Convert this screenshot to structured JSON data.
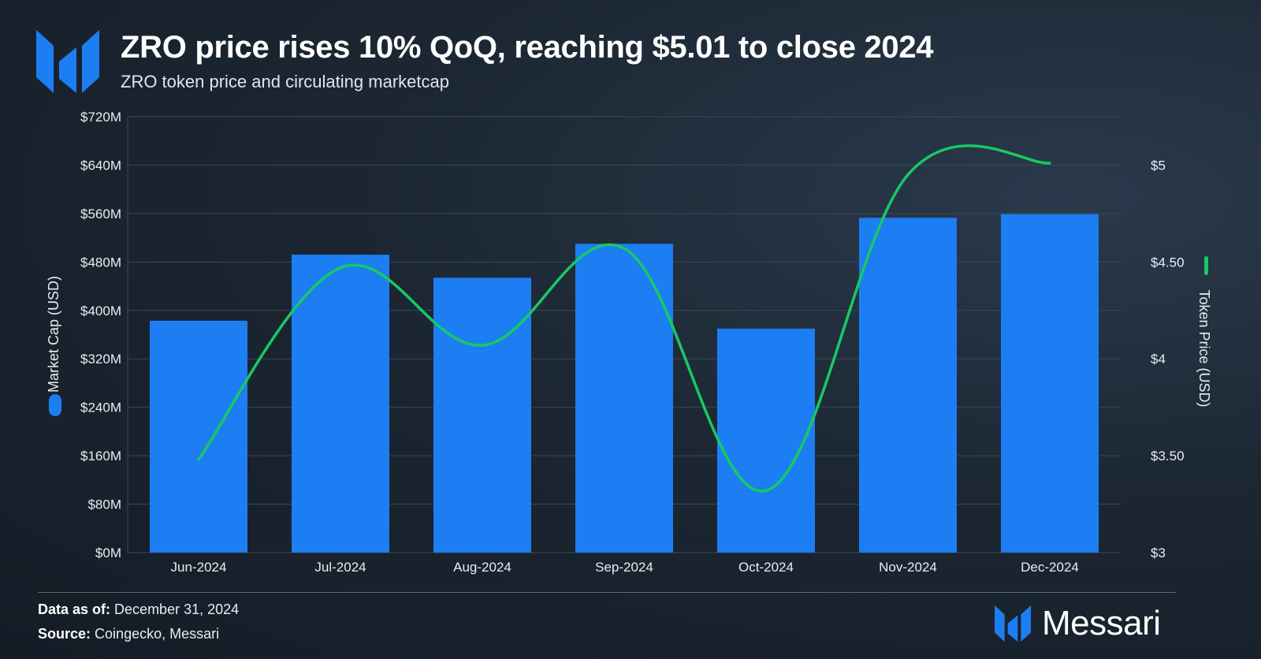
{
  "header": {
    "title": "ZRO price rises 10% QoQ, reaching $5.01 to close 2024",
    "subtitle": "ZRO token price and circulating marketcap"
  },
  "footer": {
    "data_label": "Data as of:",
    "data_value": "December 31, 2024",
    "source_label": "Source:",
    "source_value": "Coingecko, Messari",
    "brand": "Messari"
  },
  "colors": {
    "bar": "#1c7ef2",
    "line": "#18c964",
    "grid": "#3a4856",
    "axis_text": "#e8edf2"
  },
  "chart_data": {
    "type": "bar",
    "categories": [
      "Jun-2024",
      "Jul-2024",
      "Aug-2024",
      "Sep-2024",
      "Oct-2024",
      "Nov-2024",
      "Dec-2024"
    ],
    "series": [
      {
        "name": "Market Cap (USD)",
        "type": "bar",
        "axis": "left",
        "values": [
          383,
          492,
          454,
          510,
          370,
          553,
          559
        ]
      },
      {
        "name": "Token Price (USD)",
        "type": "line",
        "axis": "right",
        "values": [
          3.48,
          4.47,
          4.07,
          4.57,
          3.32,
          4.95,
          5.01
        ]
      }
    ],
    "left_axis": {
      "label": "Market Cap (USD)",
      "ylim": [
        0,
        720
      ],
      "ticks": [
        0,
        80,
        160,
        240,
        320,
        400,
        480,
        560,
        640,
        720
      ],
      "tick_labels": [
        "$0M",
        "$80M",
        "$160M",
        "$240M",
        "$320M",
        "$400M",
        "$480M",
        "$560M",
        "$640M",
        "$720M"
      ]
    },
    "right_axis": {
      "label": "Token Price (USD)",
      "ylim": [
        3,
        5.25
      ],
      "ticks": [
        3,
        3.5,
        4,
        4.5,
        5
      ],
      "tick_labels": [
        "$3",
        "$3.50",
        "$4",
        "$4.50",
        "$5"
      ]
    },
    "grid": true,
    "legend": "axis-labels"
  }
}
